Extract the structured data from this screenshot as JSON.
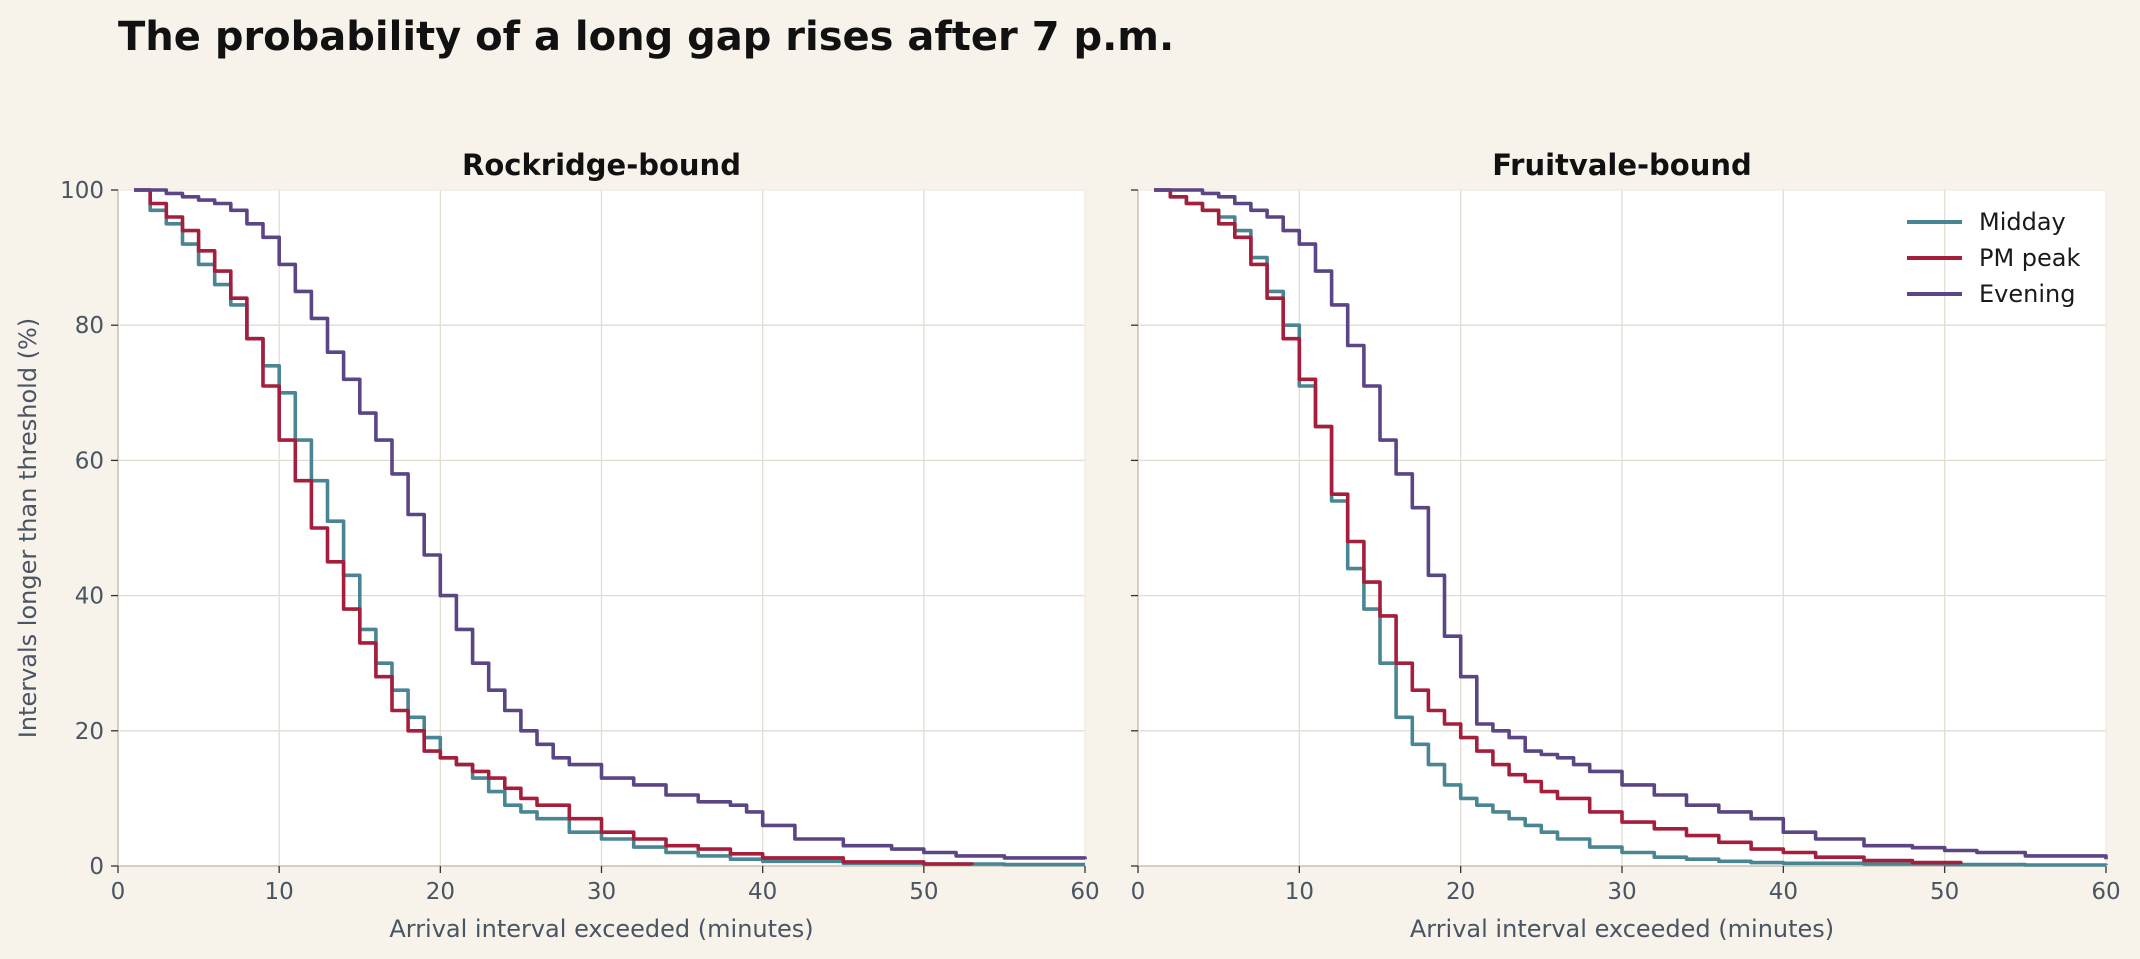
{
  "title": "The probability of a long gap rises after 7 p.m.",
  "colors": {
    "background": "#f7f2ea",
    "Midday": "#4a8593",
    "PM peak": "#a51f3c",
    "Evening": "#5b4584",
    "grid": "#e2ddd2",
    "axis": "#c9c2b4"
  },
  "chart_data": [
    {
      "type": "line",
      "title": "Rockridge-bound",
      "xlabel": "Arrival interval exceeded (minutes)",
      "ylabel": "Intervals longer than threshold (%)",
      "xlim": [
        0,
        60
      ],
      "ylim": [
        0,
        100
      ],
      "xticks": [
        0,
        10,
        20,
        30,
        40,
        50,
        60
      ],
      "yticks": [
        0,
        20,
        40,
        60,
        80,
        100
      ],
      "grid": true,
      "legend": null,
      "series": [
        {
          "name": "Midday",
          "x": [
            1,
            2,
            3,
            4,
            5,
            6,
            7,
            8,
            9,
            10,
            11,
            12,
            13,
            14,
            15,
            16,
            17,
            18,
            19,
            20,
            21,
            22,
            23,
            24,
            25,
            26,
            28,
            30,
            32,
            34,
            36,
            38,
            40,
            45,
            50,
            55,
            60
          ],
          "y": [
            100,
            97,
            95,
            92,
            89,
            86,
            83,
            78,
            74,
            70,
            63,
            57,
            51,
            43,
            35,
            30,
            26,
            22,
            19,
            16,
            15,
            13,
            11,
            9,
            8,
            7,
            5,
            4,
            2.8,
            2,
            1.5,
            1,
            0.7,
            0.4,
            0.3,
            0.2,
            0.2
          ]
        },
        {
          "name": "PM peak",
          "x": [
            1,
            2,
            3,
            4,
            5,
            6,
            7,
            8,
            9,
            10,
            11,
            12,
            13,
            14,
            15,
            16,
            17,
            18,
            19,
            20,
            21,
            22,
            23,
            24,
            25,
            26,
            28,
            30,
            32,
            34,
            36,
            38,
            40,
            45,
            50,
            53
          ],
          "y": [
            100,
            98,
            96,
            94,
            91,
            88,
            84,
            78,
            71,
            63,
            57,
            50,
            45,
            38,
            33,
            28,
            23,
            20,
            17,
            16,
            15,
            14,
            13,
            11.5,
            10,
            9,
            7,
            5,
            4,
            3,
            2.5,
            1.8,
            1.2,
            0.6,
            0.3,
            0.2
          ]
        },
        {
          "name": "Evening",
          "x": [
            1,
            2,
            3,
            4,
            5,
            6,
            7,
            8,
            9,
            10,
            11,
            12,
            13,
            14,
            15,
            16,
            17,
            18,
            19,
            20,
            21,
            22,
            23,
            24,
            25,
            26,
            27,
            28,
            30,
            32,
            34,
            36,
            38,
            39,
            40,
            42,
            45,
            48,
            50,
            52,
            55,
            60
          ],
          "y": [
            100,
            100,
            99.5,
            99,
            98.5,
            98,
            97,
            95,
            93,
            89,
            85,
            81,
            76,
            72,
            67,
            63,
            58,
            52,
            46,
            40,
            35,
            30,
            26,
            23,
            20,
            18,
            16,
            15,
            13,
            12,
            10.5,
            9.5,
            9,
            8,
            6,
            4,
            3,
            2.5,
            2,
            1.5,
            1.2,
            1
          ]
        }
      ]
    },
    {
      "type": "line",
      "title": "Fruitvale-bound",
      "xlabel": "Arrival interval exceeded (minutes)",
      "ylabel": "",
      "xlim": [
        0,
        60
      ],
      "ylim": [
        0,
        100
      ],
      "xticks": [
        0,
        10,
        20,
        30,
        40,
        50,
        60
      ],
      "yticks": [
        0,
        20,
        40,
        60,
        80,
        100
      ],
      "grid": true,
      "legend": "top-right",
      "series": [
        {
          "name": "Midday",
          "x": [
            1,
            2,
            3,
            4,
            5,
            6,
            7,
            8,
            9,
            10,
            11,
            12,
            13,
            14,
            15,
            16,
            17,
            18,
            19,
            20,
            21,
            22,
            23,
            24,
            25,
            26,
            28,
            30,
            32,
            34,
            36,
            38,
            40,
            45,
            50,
            55,
            60
          ],
          "y": [
            100,
            99,
            98,
            97,
            96,
            94,
            90,
            85,
            80,
            71,
            65,
            54,
            44,
            38,
            30,
            22,
            18,
            15,
            12,
            10,
            9,
            8,
            7,
            6,
            5,
            4,
            2.8,
            2,
            1.3,
            1,
            0.7,
            0.5,
            0.4,
            0.3,
            0.2,
            0.15,
            0.1
          ]
        },
        {
          "name": "PM peak",
          "x": [
            1,
            2,
            3,
            4,
            5,
            6,
            7,
            8,
            9,
            10,
            11,
            12,
            13,
            14,
            15,
            16,
            17,
            18,
            19,
            20,
            21,
            22,
            23,
            24,
            25,
            26,
            28,
            30,
            32,
            34,
            36,
            38,
            40,
            42,
            45,
            48,
            51
          ],
          "y": [
            100,
            99,
            98,
            97,
            95,
            93,
            89,
            84,
            78,
            72,
            65,
            55,
            48,
            42,
            37,
            30,
            26,
            23,
            21,
            19,
            17,
            15,
            13.5,
            12.5,
            11,
            10,
            8,
            6.5,
            5.5,
            4.5,
            3.5,
            2.5,
            2,
            1.3,
            0.8,
            0.5,
            0.3
          ]
        },
        {
          "name": "Evening",
          "x": [
            1,
            2,
            3,
            4,
            5,
            6,
            7,
            8,
            9,
            10,
            11,
            12,
            13,
            14,
            15,
            16,
            17,
            18,
            19,
            20,
            21,
            22,
            23,
            24,
            25,
            26,
            27,
            28,
            30,
            32,
            34,
            36,
            38,
            40,
            42,
            45,
            48,
            50,
            52,
            55,
            60
          ],
          "y": [
            100,
            100,
            100,
            99.5,
            99,
            98,
            97,
            96,
            94,
            92,
            88,
            83,
            77,
            71,
            63,
            58,
            53,
            43,
            34,
            28,
            21,
            20,
            19,
            17,
            16.5,
            16,
            15,
            14,
            12,
            10.5,
            9,
            8,
            7,
            5,
            4,
            3,
            2.7,
            2.3,
            2,
            1.5,
            1
          ]
        }
      ]
    }
  ]
}
